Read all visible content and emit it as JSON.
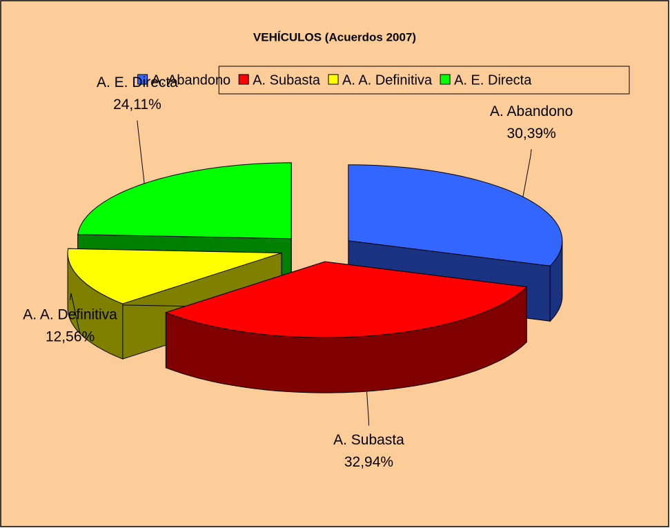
{
  "chart_data": {
    "type": "pie3d",
    "title": "VEHÍCULOS (Acuerdos 2007)",
    "categories": [
      "A. Abandono",
      "A. Subasta",
      "A. A. Definitiva",
      "A. E. Directa"
    ],
    "values": [
      30.39,
      32.94,
      12.56,
      24.11
    ],
    "value_labels": [
      "30,39%",
      "32,94%",
      "12,56%",
      "24,11%"
    ],
    "colors": [
      "#3366ff",
      "#ff0000",
      "#ffff00",
      "#00ff00"
    ],
    "legend": "top"
  }
}
